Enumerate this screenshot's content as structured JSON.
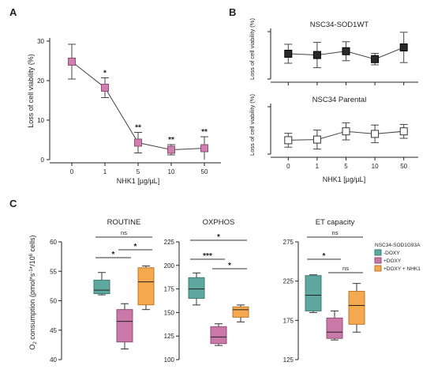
{
  "colors": {
    "axis": "#222222",
    "pink_marker": "#cf7fb0",
    "black_marker": "#2a2a2a",
    "white_marker": "#ffffff",
    "teal": "#5fa8a0",
    "pink": "#c978a8",
    "orange": "#f5a94e"
  },
  "panel_letters": {
    "a": "A",
    "b": "B",
    "c": "C"
  },
  "panel_a": {
    "ylabel": "Loss of cell viability (%)",
    "xlabel": "NHK1 [µg/µL]",
    "yticks": [
      "0",
      "10",
      "20",
      "30"
    ],
    "xticks": [
      "0",
      "1",
      "5",
      "10",
      "50"
    ]
  },
  "panel_b": {
    "top_title": "NSC34-SOD1WT",
    "bottom_title": "NSC34 Parental",
    "ylabel": "Loss of cell viability (%)",
    "xlabel": "NHK1 [µg/µL]",
    "xticks": [
      "0",
      "1",
      "5",
      "10",
      "50"
    ]
  },
  "panel_c": {
    "ylabel": "O2 consumption (pmol*s-1*/10⁶ cells)",
    "legend_title": "NSC34-SOD1G93A",
    "legend": [
      "-DOXY",
      "+DOXY",
      "+DOXY + NHK1"
    ]
  },
  "chart_data": [
    {
      "panel": "A",
      "type": "line",
      "x": [
        "0",
        "1",
        "5",
        "10",
        "50"
      ],
      "xlabel": "NHK1 [µg/µL]",
      "ylabel": "Loss of cell viability (%)",
      "ylim": [
        0,
        30
      ],
      "yticks": [
        0,
        10,
        20,
        30
      ],
      "series": [
        {
          "values": [
            24.8,
            18.2,
            4.3,
            2.5,
            2.9
          ],
          "error": [
            4.4,
            2.5,
            2.6,
            1.3,
            2.9
          ],
          "significance": [
            "",
            "*",
            "**",
            "**",
            "**"
          ]
        }
      ]
    },
    {
      "panel": "B",
      "type": "line",
      "title": "NSC34-SOD1WT",
      "x": [
        "0",
        "1",
        "5",
        "10",
        "50"
      ],
      "ylabel": "Loss of cell viability (%)",
      "series": [
        {
          "values": [
            8.0,
            7.6,
            8.8,
            6.3,
            10.0
          ],
          "error": [
            3.0,
            4.0,
            3.0,
            1.8,
            4.8
          ]
        }
      ]
    },
    {
      "panel": "B",
      "type": "line",
      "title": "NSC34 Parental",
      "x": [
        "0",
        "1",
        "5",
        "10",
        "50"
      ],
      "xlabel": "NHK1 [µg/µL]",
      "ylabel": "Loss of cell viability (%)",
      "series": [
        {
          "values": [
            4.4,
            4.6,
            7.2,
            6.4,
            7.2
          ],
          "error": [
            2.2,
            3.0,
            2.7,
            2.8,
            2.2
          ]
        }
      ]
    },
    {
      "panel": "C",
      "type": "box",
      "title": "ROUTINE",
      "ylabel": "O2 consumption (pmol*s-1*/10⁶ cells)",
      "ylim": [
        40,
        60
      ],
      "yticks": [
        40,
        45,
        50,
        55,
        60
      ],
      "groups": [
        {
          "name": "-DOXY",
          "min": 51.0,
          "q1": 51.2,
          "median": 51.8,
          "q3": 53.5,
          "max": 54.8
        },
        {
          "name": "+DOXY",
          "min": 41.8,
          "q1": 43.0,
          "median": 46.5,
          "q3": 48.5,
          "max": 49.5
        },
        {
          "name": "+DOXY + NHK1",
          "min": 48.5,
          "q1": 49.3,
          "median": 53.2,
          "q3": 55.6,
          "max": 55.9
        }
      ],
      "comparisons": [
        {
          "groups": [
            0,
            2
          ],
          "label": "ns"
        },
        {
          "groups": [
            0,
            1
          ],
          "label": "*"
        },
        {
          "groups": [
            1,
            2
          ],
          "label": "*"
        }
      ]
    },
    {
      "panel": "C",
      "type": "box",
      "title": "OXPHOS",
      "ylim": [
        100,
        225
      ],
      "yticks": [
        100,
        125,
        150,
        175,
        200,
        225
      ],
      "groups": [
        {
          "name": "-DOXY",
          "min": 158,
          "q1": 165,
          "median": 175,
          "q3": 187,
          "max": 192
        },
        {
          "name": "+DOXY",
          "min": 115,
          "q1": 117,
          "median": 124,
          "q3": 135,
          "max": 138
        },
        {
          "name": "+DOXY + NHK1",
          "min": 140,
          "q1": 145,
          "median": 153,
          "q3": 156,
          "max": 158
        }
      ],
      "comparisons": [
        {
          "groups": [
            0,
            2
          ],
          "label": "*"
        },
        {
          "groups": [
            0,
            1
          ],
          "label": "***"
        },
        {
          "groups": [
            1,
            2
          ],
          "label": "*"
        }
      ]
    },
    {
      "panel": "C",
      "type": "box",
      "title": "ET capacity",
      "ylim": [
        125,
        275
      ],
      "yticks": [
        125,
        175,
        225,
        275
      ],
      "groups": [
        {
          "name": "-DOXY",
          "min": 185,
          "q1": 187,
          "median": 207,
          "q3": 232,
          "max": 233
        },
        {
          "name": "+DOXY",
          "min": 150,
          "q1": 152,
          "median": 160,
          "q3": 178,
          "max": 187
        },
        {
          "name": "+DOXY + NHK1",
          "min": 160,
          "q1": 170,
          "median": 194,
          "q3": 212,
          "max": 222
        }
      ],
      "comparisons": [
        {
          "groups": [
            0,
            2
          ],
          "label": "ns"
        },
        {
          "groups": [
            0,
            1
          ],
          "label": "*"
        },
        {
          "groups": [
            1,
            2
          ],
          "label": "ns"
        }
      ]
    }
  ]
}
